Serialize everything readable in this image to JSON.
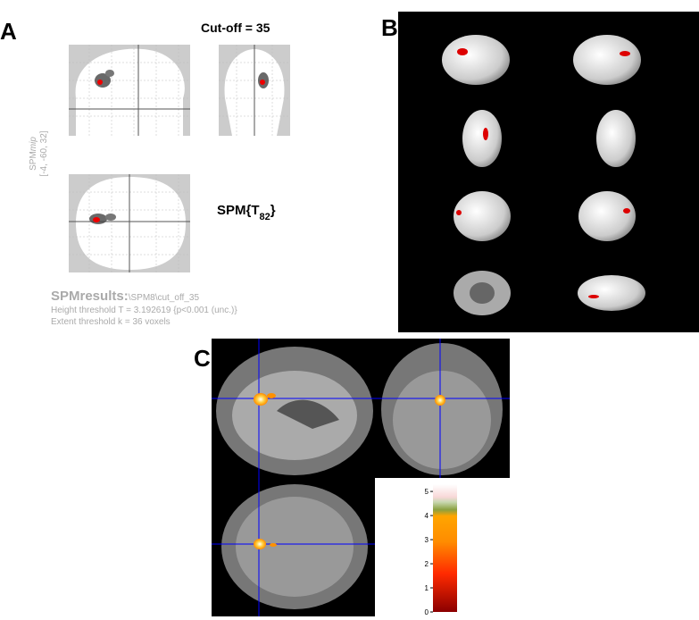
{
  "panel_a": {
    "letter": "A",
    "title": "Cut-off = 35",
    "mip_label": {
      "main": "SPM",
      "italic": "mip",
      "coords": "[-4, -60, 32]"
    },
    "stat": {
      "prefix": "SPM{T",
      "subscript": "82",
      "suffix": "}"
    },
    "results": {
      "label": "SPMresults:",
      "path": "\\SPM8\\cut_off_35",
      "height": "Height threshold T = 3.192619  {p<0.001 (unc.)}",
      "extent": "Extent threshold k = 36 voxels"
    }
  },
  "panel_b": {
    "letter": "B"
  },
  "panel_c": {
    "letter": "C",
    "colorbar": {
      "ylim": [
        0,
        5.3
      ],
      "yticks": [
        0,
        1,
        2,
        3,
        4,
        5
      ]
    }
  }
}
